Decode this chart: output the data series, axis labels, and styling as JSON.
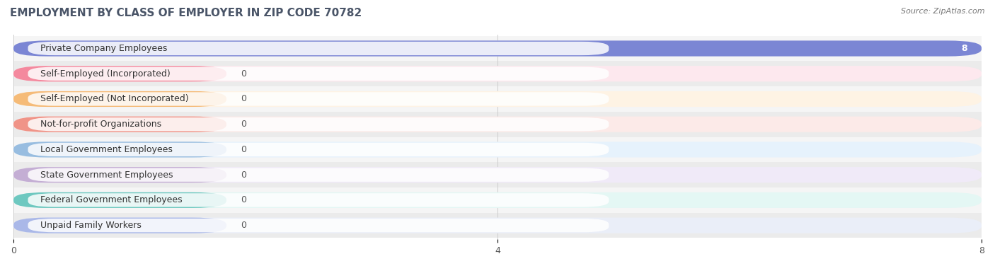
{
  "title": "EMPLOYMENT BY CLASS OF EMPLOYER IN ZIP CODE 70782",
  "source": "Source: ZipAtlas.com",
  "categories": [
    "Private Company Employees",
    "Self-Employed (Incorporated)",
    "Self-Employed (Not Incorporated)",
    "Not-for-profit Organizations",
    "Local Government Employees",
    "State Government Employees",
    "Federal Government Employees",
    "Unpaid Family Workers"
  ],
  "values": [
    8,
    0,
    0,
    0,
    0,
    0,
    0,
    0
  ],
  "bar_colors": [
    "#7b86d4",
    "#f4899e",
    "#f5bb78",
    "#f09488",
    "#98bde0",
    "#c4aed4",
    "#6ec8c0",
    "#aab8e8"
  ],
  "bar_bg_colors": [
    "#e8eaf4",
    "#fde8ee",
    "#fef3e4",
    "#fceae8",
    "#e6f2fc",
    "#f0eaf8",
    "#e4f7f4",
    "#eaeef8"
  ],
  "xlim": [
    0,
    8
  ],
  "xticks": [
    0,
    4,
    8
  ],
  "background_color": "#ffffff",
  "row_bg_color": "#f0f0f0",
  "title_fontsize": 11,
  "bar_height": 0.62,
  "label_fontsize": 9,
  "value_fontsize": 9
}
